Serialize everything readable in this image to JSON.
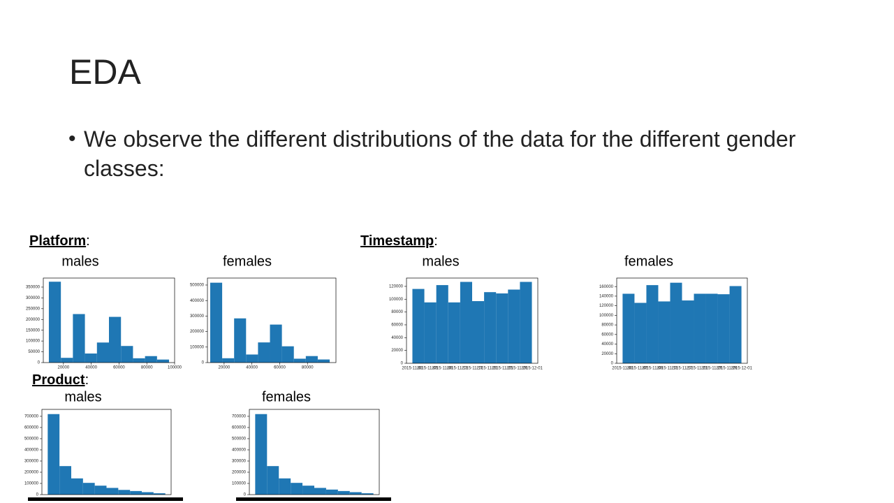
{
  "title": "EDA",
  "bullet": "We observe the different distributions of the data for the different gender classes:",
  "sections": [
    {
      "label": "Platform",
      "suffix": ":"
    },
    {
      "label": "Timestamp",
      "suffix": ":"
    },
    {
      "label": "Product",
      "suffix": ":"
    }
  ],
  "chart_data": [
    {
      "type": "histogram",
      "title": "males",
      "color": "#1f77b4",
      "bins": [
        9500,
        18150,
        26800,
        35450,
        44100,
        52750,
        61400,
        70050,
        78700,
        87350,
        96000
      ],
      "values": [
        375000,
        22000,
        225000,
        42000,
        93000,
        212000,
        77000,
        20000,
        30000,
        14000
      ],
      "xlim": [
        5500,
        100000
      ],
      "xticks": [
        20000,
        40000,
        60000,
        80000,
        100000
      ],
      "ylim": [
        0,
        392000
      ],
      "yticks": [
        0,
        50000,
        100000,
        150000,
        200000,
        250000,
        300000,
        350000
      ]
    },
    {
      "type": "histogram",
      "title": "females",
      "color": "#1f77b4",
      "bins": [
        10000,
        18600,
        27200,
        35800,
        44400,
        53000,
        61600,
        70200,
        78800,
        87400,
        96000
      ],
      "values": [
        515000,
        28000,
        285000,
        52000,
        130000,
        245000,
        105000,
        25000,
        42000,
        20000
      ],
      "xlim": [
        8000,
        100500
      ],
      "xticks": [
        20000,
        40000,
        60000,
        80000
      ],
      "ylim": [
        0,
        545000
      ],
      "yticks": [
        0,
        100000,
        200000,
        300000,
        400000,
        500000
      ]
    },
    {
      "type": "bar",
      "title": "males",
      "color": "#1f77b4",
      "values": [
        116000,
        95000,
        122000,
        95000,
        127000,
        97000,
        111000,
        109000,
        115000,
        127000
      ],
      "xtick_labels": [
        "2015-11-01",
        "2015-11-05",
        "2015-11-09",
        "2015-11-13",
        "2015-11-17",
        "2015-11-21",
        "2015-11-25",
        "2015-11-29",
        "2015-12-01"
      ],
      "ylim": [
        0,
        133000
      ],
      "yticks": [
        0,
        20000,
        40000,
        60000,
        80000,
        100000,
        120000
      ]
    },
    {
      "type": "bar",
      "title": "females",
      "color": "#1f77b4",
      "values": [
        145000,
        126000,
        163000,
        129000,
        168000,
        131000,
        145000,
        145000,
        144000,
        161000
      ],
      "xtick_labels": [
        "2015-11-01",
        "2015-11-05",
        "2015-11-09",
        "2015-11-13",
        "2015-11-17",
        "2015-11-21",
        "2015-11-25",
        "2015-11-29",
        "2015-12-01"
      ],
      "ylim": [
        0,
        177750
      ],
      "yticks": [
        0,
        20000,
        40000,
        60000,
        80000,
        100000,
        120000,
        140000,
        160000
      ]
    },
    {
      "type": "bar",
      "title": "males",
      "color": "#1f77b4",
      "values": [
        720000,
        255000,
        145000,
        105000,
        80000,
        60000,
        42000,
        32000,
        22000,
        12000
      ],
      "ylim": [
        0,
        762000
      ],
      "yticks": [
        0,
        100000,
        200000,
        300000,
        400000,
        500000,
        600000,
        700000
      ]
    },
    {
      "type": "bar",
      "title": "females",
      "color": "#1f77b4",
      "values": [
        720000,
        255000,
        145000,
        105000,
        80000,
        60000,
        45000,
        32000,
        22000,
        12000
      ],
      "ylim": [
        0,
        762000
      ],
      "yticks": [
        0,
        100000,
        200000,
        300000,
        400000,
        500000,
        600000,
        700000
      ]
    }
  ]
}
